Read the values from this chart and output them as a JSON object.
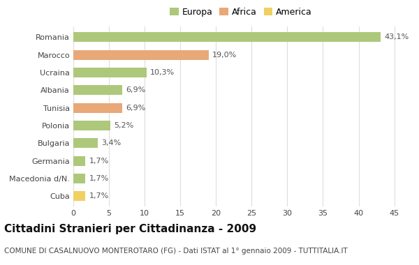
{
  "categories": [
    "Romania",
    "Marocco",
    "Ucraina",
    "Albania",
    "Tunisia",
    "Polonia",
    "Bulgaria",
    "Germania",
    "Macedonia d/N.",
    "Cuba"
  ],
  "values": [
    43.1,
    19.0,
    10.3,
    6.9,
    6.9,
    5.2,
    3.4,
    1.7,
    1.7,
    1.7
  ],
  "colors": [
    "#adc87a",
    "#e8a878",
    "#adc87a",
    "#adc87a",
    "#e8a878",
    "#adc87a",
    "#adc87a",
    "#adc87a",
    "#adc87a",
    "#f0d060"
  ],
  "labels": [
    "43,1%",
    "19,0%",
    "10,3%",
    "6,9%",
    "6,9%",
    "5,2%",
    "3,4%",
    "1,7%",
    "1,7%",
    "1,7%"
  ],
  "legend_labels": [
    "Europa",
    "Africa",
    "America"
  ],
  "legend_colors": [
    "#adc87a",
    "#e8a878",
    "#f0d060"
  ],
  "title": "Cittadini Stranieri per Cittadinanza - 2009",
  "subtitle": "COMUNE DI CASALNUOVO MONTEROTARO (FG) - Dati ISTAT al 1° gennaio 2009 - TUTTITALIA.IT",
  "xlim": [
    0,
    47
  ],
  "xticks": [
    0,
    5,
    10,
    15,
    20,
    25,
    30,
    35,
    40,
    45
  ],
  "background_color": "#ffffff",
  "grid_color": "#dddddd",
  "bar_height": 0.55,
  "title_fontsize": 11,
  "subtitle_fontsize": 7.5,
  "tick_fontsize": 8,
  "label_fontsize": 8,
  "legend_fontsize": 9
}
